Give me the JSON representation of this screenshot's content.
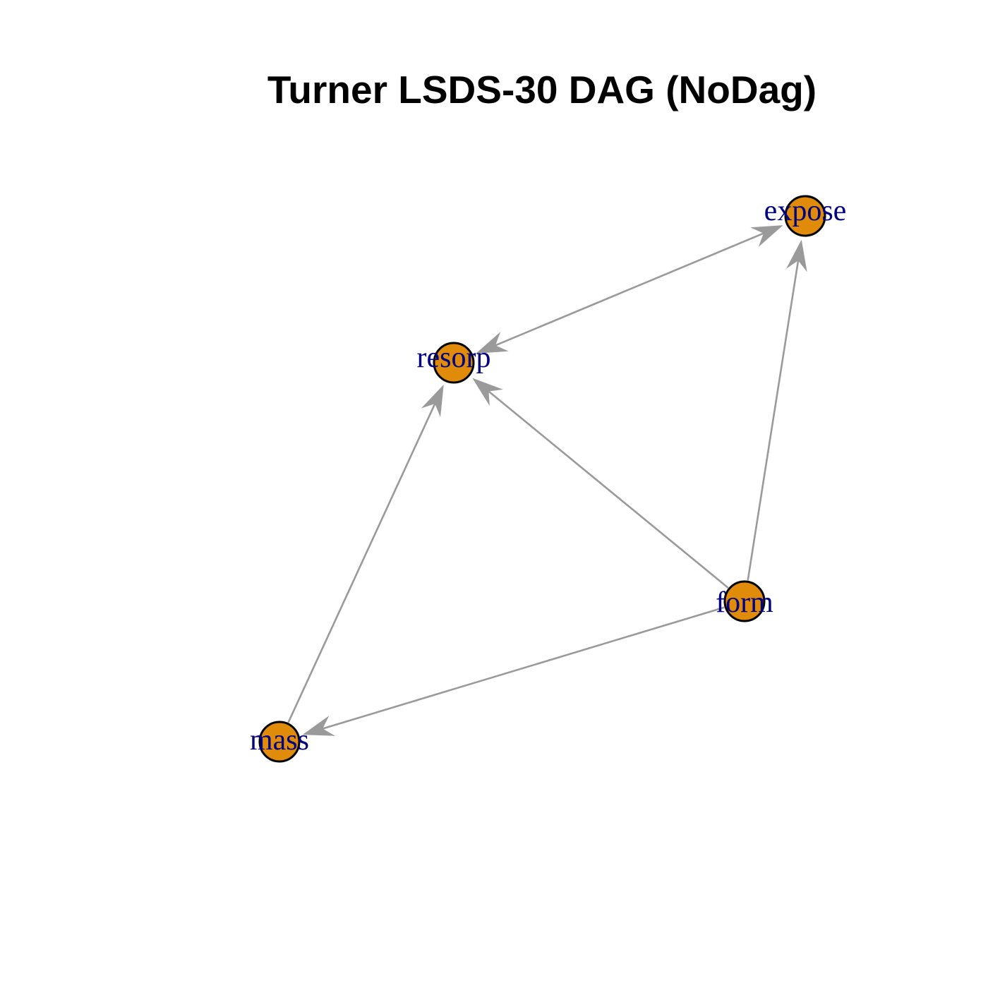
{
  "title": "Turner LSDS-30 DAG (NoDag)",
  "colors": {
    "node_fill": "#e08c0a",
    "node_stroke": "#000000",
    "edge": "#9a9a9a",
    "label": "#000080"
  },
  "nodes": [
    {
      "id": "expose",
      "label": "expose"
    },
    {
      "id": "resorp",
      "label": "resorp"
    },
    {
      "id": "form",
      "label": "form"
    },
    {
      "id": "mass",
      "label": "mass"
    }
  ],
  "edges": [
    {
      "from": "resorp",
      "to": "expose",
      "direction": "both"
    },
    {
      "from": "form",
      "to": "expose",
      "direction": "forward"
    },
    {
      "from": "form",
      "to": "resorp",
      "direction": "forward"
    },
    {
      "from": "mass",
      "to": "resorp",
      "direction": "forward"
    },
    {
      "from": "form",
      "to": "mass",
      "direction": "forward"
    }
  ]
}
